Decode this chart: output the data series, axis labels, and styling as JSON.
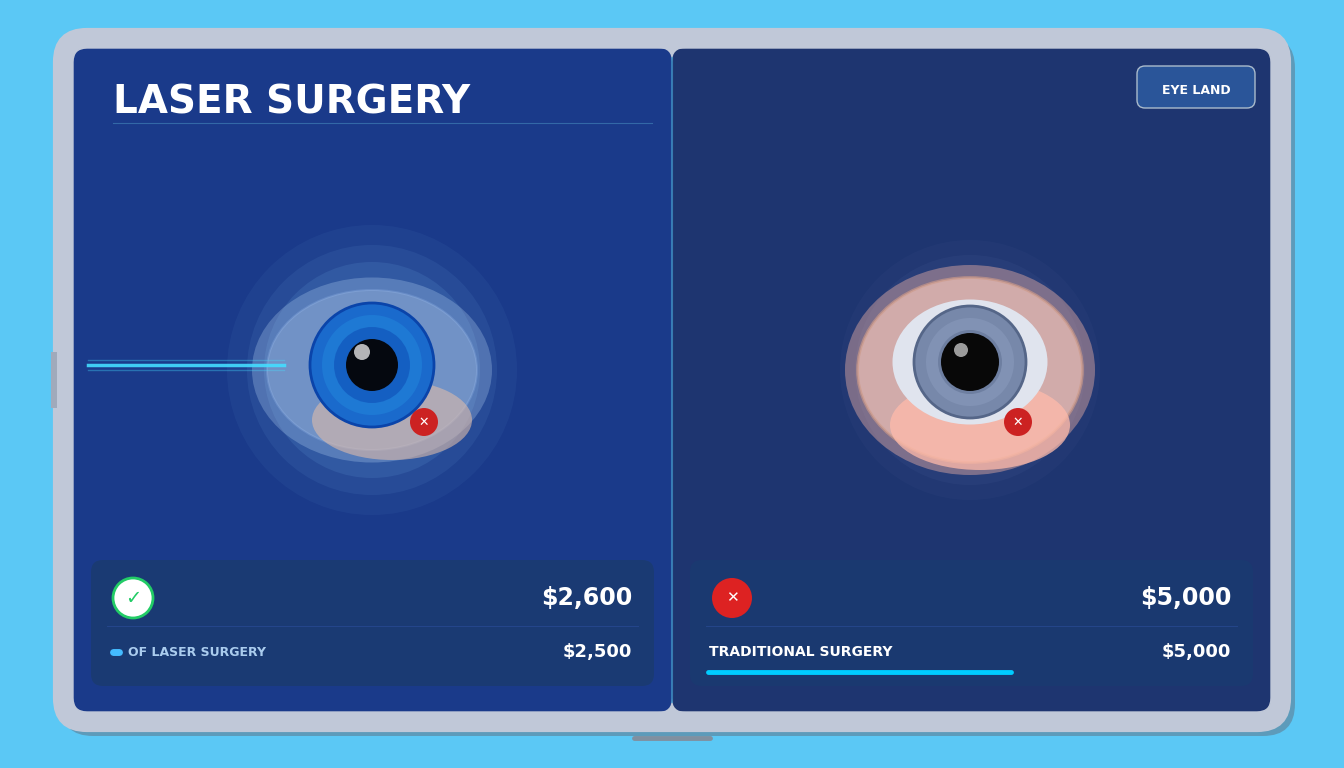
{
  "title": "LASER SURGERY",
  "brand_label": "EYE LAND",
  "bg_outer": "#5bc8f5",
  "bg_left": "#1a3a8a",
  "bg_right": "#1e3570",
  "left_card_bg": "#1a3a70",
  "right_card_bg": "#1a3a70",
  "left_icon_color": "#22cc66",
  "right_icon_color": "#dd2222",
  "left_cost_main": "$2,600",
  "left_cost_sub": "$2,500",
  "left_label": "OF LASER SURGERY",
  "right_cost_main": "$5,000",
  "right_cost_sub": "$5,000",
  "right_label": "TRADITIONAL SURGERY",
  "progress_color": "#00ccff",
  "title_color": "#ffffff",
  "tablet_border": "#c0c8d8",
  "tablet_shadow": "#8090a0"
}
